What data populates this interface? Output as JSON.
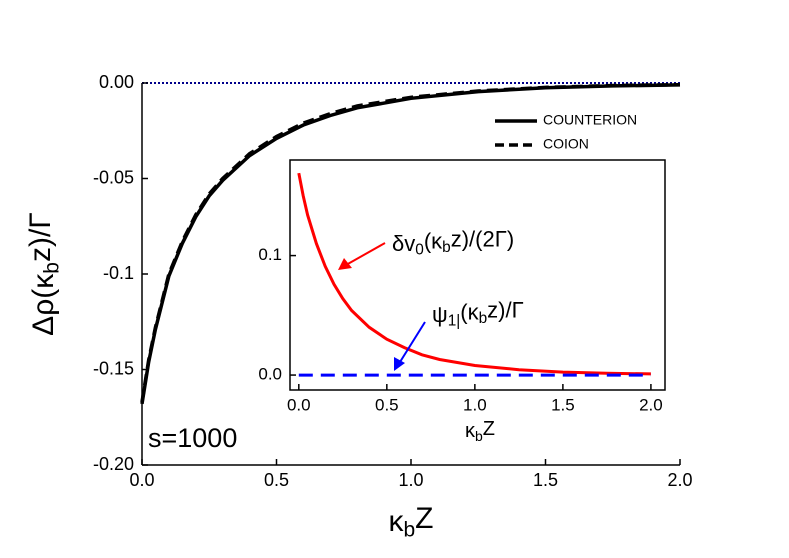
{
  "chart_data": [
    {
      "type": "line",
      "ylabel": {
        "parts": [
          {
            "text": "Δρ(κ"
          },
          {
            "text": "b",
            "sub": true
          },
          {
            "text": "z)/Γ"
          }
        ]
      },
      "xlabel": {
        "parts": [
          {
            "text": "κ"
          },
          {
            "text": "b",
            "sub": true
          },
          {
            "text": "Z"
          }
        ]
      },
      "annotations": [
        {
          "parts": [
            {
              "text": "s=1000"
            }
          ],
          "color": "#000000"
        }
      ],
      "xlim": [
        0,
        2
      ],
      "ylim": [
        -0.2,
        0
      ],
      "xticks": [
        {
          "value": 0,
          "label": "0.0"
        },
        0.5,
        {
          "value": 1,
          "label": "1.0"
        },
        1.5,
        {
          "value": 2,
          "label": "2.0"
        }
      ],
      "yticks": [
        {
          "value": 0,
          "label": "0.00"
        },
        -0.05,
        -0.1,
        -0.15,
        {
          "value": -0.2,
          "label": "-0.20"
        }
      ],
      "hline": 0,
      "hline_color": "#00008b",
      "legend": "upper right",
      "series": [
        {
          "name": "COUNTERION",
          "color": "#000000",
          "style": "solid",
          "x": [
            0,
            0.025,
            0.05,
            0.1,
            0.15,
            0.2,
            0.25,
            0.3,
            0.4,
            0.5,
            0.6,
            0.7,
            0.8,
            1.0,
            1.25,
            1.5,
            1.75,
            2.0
          ],
          "values": [
            -0.168,
            -0.146,
            -0.129,
            -0.101,
            -0.084,
            -0.07,
            -0.059,
            -0.051,
            -0.038,
            -0.029,
            -0.022,
            -0.017,
            -0.013,
            -0.008,
            -0.0045,
            -0.0025,
            -0.0015,
            -0.001
          ]
        },
        {
          "name": "COION",
          "color": "#000000",
          "style": "dashed",
          "x": [
            0,
            0.025,
            0.05,
            0.1,
            0.15,
            0.2,
            0.25,
            0.3,
            0.4,
            0.5,
            0.6,
            0.7,
            0.8,
            1.0,
            1.25,
            1.5,
            1.75,
            2.0
          ],
          "values": [
            -0.167,
            -0.145,
            -0.128,
            -0.1,
            -0.083,
            -0.069,
            -0.058,
            -0.05,
            -0.037,
            -0.028,
            -0.021,
            -0.016,
            -0.012,
            -0.0075,
            -0.0042,
            -0.0023,
            -0.0013,
            -0.0009
          ]
        }
      ]
    },
    {
      "type": "line",
      "xlabel": {
        "parts": [
          {
            "text": "κ"
          },
          {
            "text": "b",
            "sub": true
          },
          {
            "text": "Z"
          }
        ]
      },
      "annotations": [
        {
          "parts": [
            {
              "text": "δv"
            },
            {
              "text": "0",
              "sub": true
            },
            {
              "text": "(κ"
            },
            {
              "text": "b",
              "sub": true
            },
            {
              "text": "z)/(2Γ)"
            }
          ],
          "color": "#ff0000"
        },
        {
          "parts": [
            {
              "text": "ψ"
            },
            {
              "text": "1|",
              "sub": true
            },
            {
              "text": "(κ"
            },
            {
              "text": "b",
              "sub": true
            },
            {
              "text": "z)/Γ"
            }
          ],
          "color": "#0000ff"
        }
      ],
      "xlim": [
        -0.05,
        2.08
      ],
      "ylim": [
        -0.0125,
        0.18
      ],
      "xticks": [
        {
          "value": 0,
          "label": "0.0"
        },
        0.5,
        {
          "value": 1,
          "label": "1.0"
        },
        1.5,
        {
          "value": 2,
          "label": "2.0"
        }
      ],
      "yticks": [
        {
          "value": 0,
          "label": "0.0"
        },
        0.1
      ],
      "series": [
        {
          "color": "#ff0000",
          "style": "solid",
          "x": [
            0,
            0.025,
            0.05,
            0.1,
            0.15,
            0.2,
            0.25,
            0.3,
            0.4,
            0.5,
            0.6,
            0.7,
            0.8,
            1.0,
            1.25,
            1.5,
            1.75,
            2.0
          ],
          "values": [
            0.169,
            0.15,
            0.134,
            0.11,
            0.091,
            0.076,
            0.064,
            0.054,
            0.04,
            0.03,
            0.023,
            0.017,
            0.013,
            0.008,
            0.0045,
            0.0025,
            0.0015,
            0.001
          ]
        },
        {
          "color": "#0000ff",
          "style": "dashed",
          "x": [
            0,
            2
          ],
          "values": [
            0,
            0
          ]
        }
      ]
    }
  ]
}
